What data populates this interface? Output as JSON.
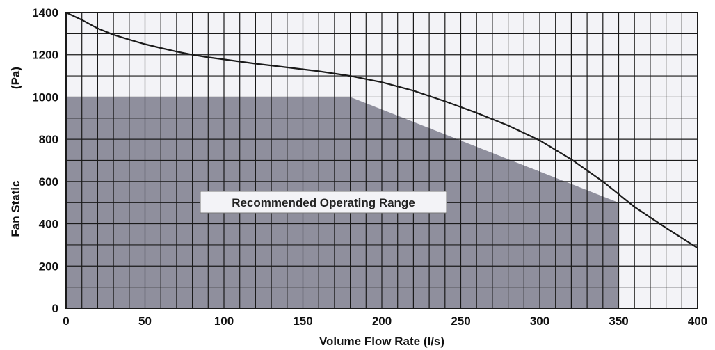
{
  "chart_data": {
    "type": "line",
    "title": "",
    "xlabel": "Volume Flow Rate (l/s)",
    "ylabel": "Fan Static",
    "ylabel_unit": "(Pa)",
    "xlim": [
      0,
      400
    ],
    "ylim": [
      0,
      1400
    ],
    "x_ticks": [
      0,
      50,
      100,
      150,
      200,
      250,
      300,
      350,
      400
    ],
    "y_ticks": [
      0,
      200,
      400,
      600,
      800,
      1000,
      1200,
      1400
    ],
    "grid": true,
    "grid_x_step": 10,
    "grid_y_step": 100,
    "series": [
      {
        "x": [
          0,
          10,
          20,
          30,
          40,
          50,
          60,
          70,
          80,
          90,
          100,
          120,
          140,
          160,
          180,
          200,
          220,
          240,
          260,
          280,
          300,
          320,
          340,
          360,
          380,
          400
        ],
        "y": [
          1400,
          1365,
          1325,
          1295,
          1272,
          1250,
          1232,
          1215,
          1200,
          1188,
          1178,
          1158,
          1140,
          1122,
          1100,
          1070,
          1030,
          980,
          925,
          865,
          795,
          705,
          600,
          480,
          380,
          285
        ]
      }
    ],
    "region": {
      "label": "Recommended Operating Range",
      "polygon": [
        [
          0,
          0
        ],
        [
          0,
          1000
        ],
        [
          180,
          1000
        ],
        [
          350,
          500
        ],
        [
          350,
          0
        ]
      ]
    },
    "colors": {
      "region_fill": "#8f8f9d",
      "background": "#f3f3f7",
      "grid": "#1a1a1a",
      "curve": "#1a1a1a"
    }
  }
}
